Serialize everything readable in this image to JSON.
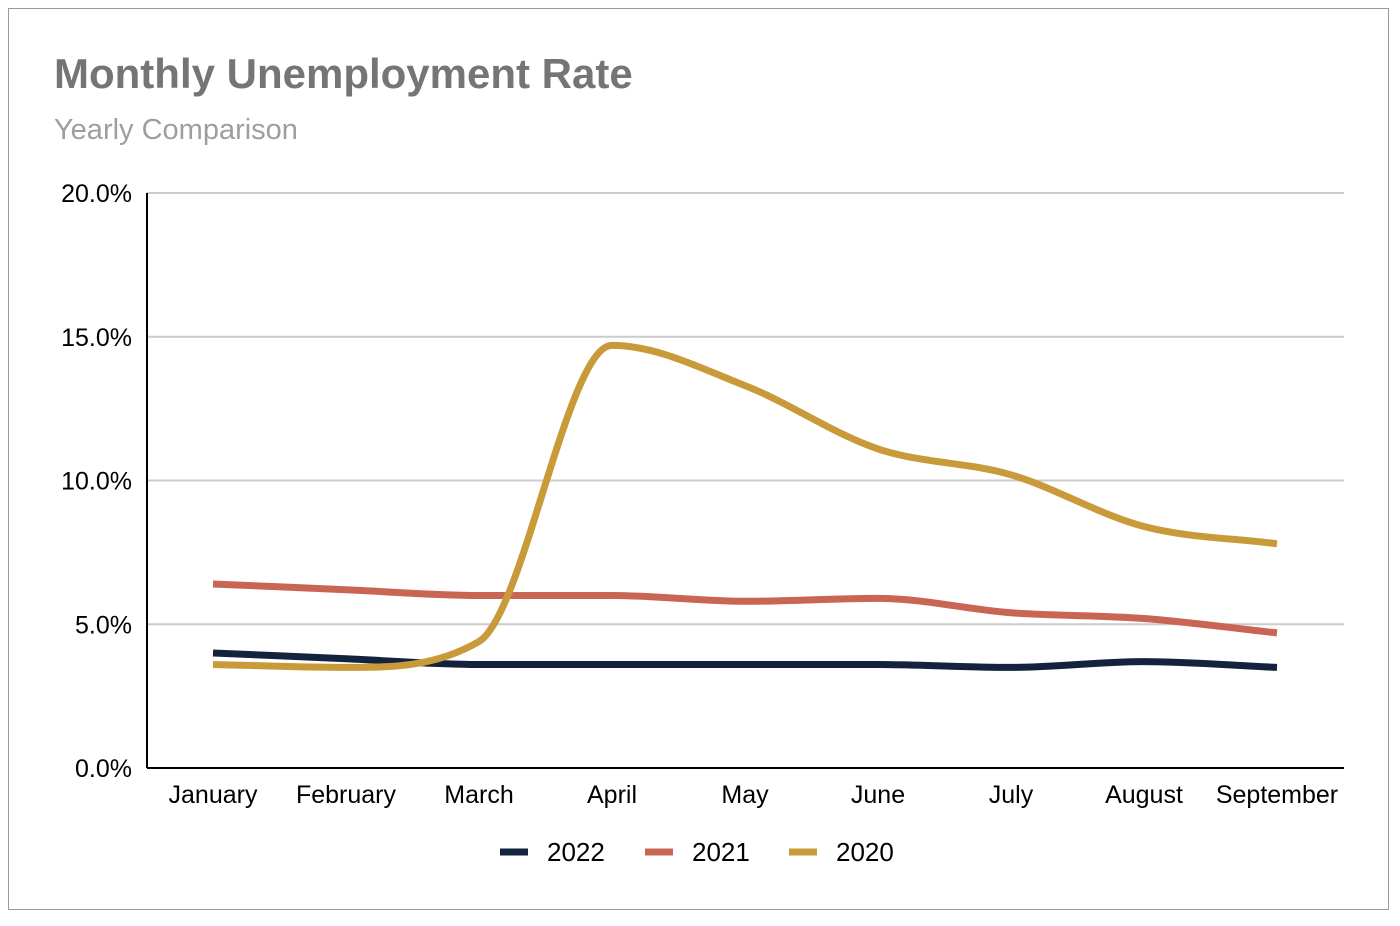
{
  "chart_data": {
    "type": "line",
    "title": "Monthly Unemployment Rate",
    "subtitle": "Yearly Comparison",
    "xlabel": "",
    "ylabel": "",
    "categories": [
      "January",
      "February",
      "March",
      "April",
      "May",
      "June",
      "July",
      "August",
      "September"
    ],
    "ylim": [
      0,
      20
    ],
    "yticks": [
      "0.0%",
      "5.0%",
      "10.0%",
      "15.0%",
      "20.0%"
    ],
    "grid": true,
    "smooth": true,
    "legend_position": "bottom",
    "series": [
      {
        "name": "2022",
        "color": "#14233d",
        "values": [
          4.0,
          3.8,
          3.6,
          3.6,
          3.6,
          3.6,
          3.5,
          3.7,
          3.5
        ]
      },
      {
        "name": "2021",
        "color": "#c96553",
        "values": [
          6.4,
          6.2,
          6.0,
          6.0,
          5.8,
          5.9,
          5.4,
          5.2,
          4.7
        ]
      },
      {
        "name": "2020",
        "color": "#c99a3a",
        "values": [
          3.6,
          3.5,
          4.4,
          14.7,
          13.3,
          11.1,
          10.2,
          8.4,
          7.8
        ]
      }
    ]
  }
}
